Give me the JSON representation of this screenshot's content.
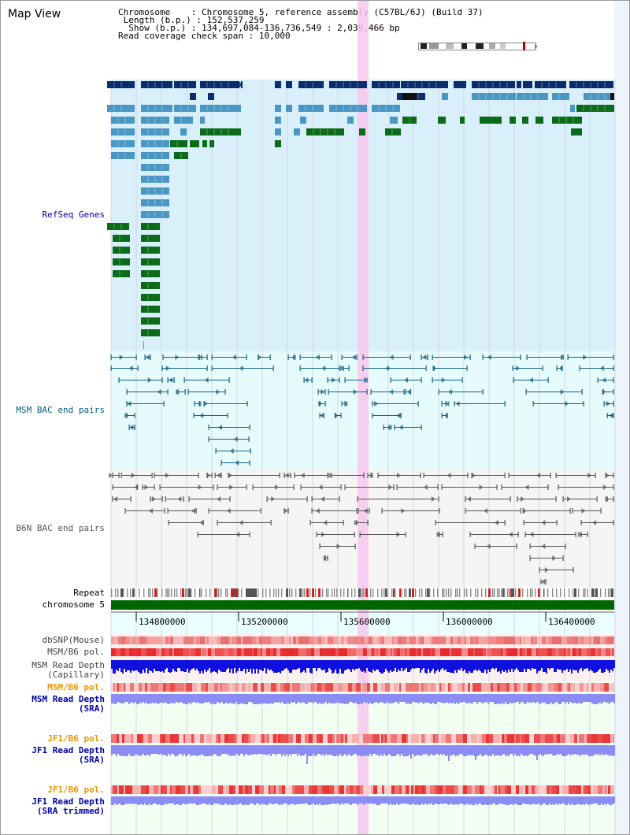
{
  "page": {
    "title": "Map View"
  },
  "info": {
    "chromosome_label": "Chromosome",
    "chromosome_value": "Chromosome 5, reference assembly (C57BL/6J) (Build 37)",
    "length_label": "Length (b.p.)",
    "length_value": "152,537,259",
    "show_label": "Show (b.p.)",
    "show_value": "134,697,084-136,736,549 : 2,039,466 bp",
    "span_label": "Read coverage check span",
    "span_value": "10,000"
  },
  "tracks": {
    "refseq": "RefSeq Genes",
    "msm_bac": "MSM BAC end pairs",
    "b6n_bac": "B6N BAC end pairs",
    "repeat": "Repeat",
    "chromosome": "chromosome 5",
    "dbsnp": "dbSNP(Mouse)",
    "msm_b6_pol": "MSM/B6 pol.",
    "msm_depth_cap_1": "MSM Read Depth",
    "msm_depth_cap_2": "(Capillary)",
    "msm_b6_pol_sra": "MSM/B6 pol.",
    "msm_depth_sra_1": "MSM Read Depth",
    "msm_depth_sra_2": "(SRA)",
    "jf1_b6_pol": "JF1/B6 pol.",
    "jf1_depth_sra_1": "JF1 Read Depth",
    "jf1_depth_sra_2": "(SRA)",
    "jf1_b6_pol_trim": "JF1/B6 pol.",
    "jf1_depth_trim_1": "JF1 Read Depth",
    "jf1_depth_trim_2": "(SRA trimmed)"
  },
  "axis": {
    "ticks": [
      "134800000",
      "135200000",
      "135600000",
      "136000000",
      "136400000"
    ]
  },
  "colors": {
    "refseq_bg": "#d9f0fb",
    "gene_dark": "#0c2d6b",
    "gene_mid": "#4a97c3",
    "gene_green": "#0b6b18",
    "msm_line": "#1a5f82",
    "b6n_line": "#555555",
    "highlight": "#f7c8ee",
    "chromosome": "#006600",
    "snp": "#ef8080",
    "pol": "#ea3030",
    "depth_cap": "#1010e0",
    "depth_sra": "#8c8cf5",
    "label_blue": "#0000aa",
    "label_teal": "#005d82",
    "label_orange": "#ee9500"
  }
}
